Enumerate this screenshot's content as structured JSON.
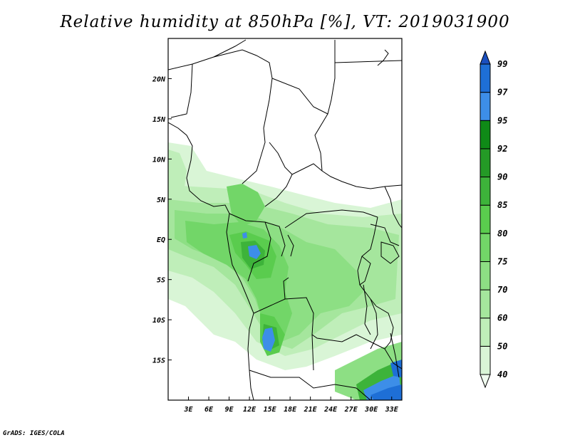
{
  "title": "Relative humidity at 850hPa [%], VT: 2019031900",
  "credit": "GrADS: IGES/COLA",
  "map": {
    "lon_range": [
      0,
      34.5
    ],
    "lat_range": [
      -20,
      25
    ],
    "lon_ticks": [
      {
        "value": 3,
        "label": "3E"
      },
      {
        "value": 6,
        "label": "6E"
      },
      {
        "value": 9,
        "label": "9E"
      },
      {
        "value": 12,
        "label": "12E"
      },
      {
        "value": 15,
        "label": "15E"
      },
      {
        "value": 18,
        "label": "18E"
      },
      {
        "value": 21,
        "label": "21E"
      },
      {
        "value": 24,
        "label": "24E"
      },
      {
        "value": 27,
        "label": "27E"
      },
      {
        "value": 30,
        "label": "30E"
      },
      {
        "value": 33,
        "label": "33E"
      }
    ],
    "lat_ticks": [
      {
        "value": 20,
        "label": "20N"
      },
      {
        "value": 15,
        "label": "15N"
      },
      {
        "value": 10,
        "label": "10N"
      },
      {
        "value": 5,
        "label": "5N"
      },
      {
        "value": 0,
        "label": "EQ"
      },
      {
        "value": -5,
        "label": "5S"
      },
      {
        "value": -10,
        "label": "10S"
      },
      {
        "value": -15,
        "label": "15S"
      }
    ]
  },
  "colorbar": {
    "levels": [
      "40",
      "50",
      "60",
      "70",
      "75",
      "80",
      "85",
      "90",
      "92",
      "95",
      "97",
      "99"
    ],
    "colors": [
      "#f0fbef",
      "#d9f5d6",
      "#bfeeb9",
      "#a5e69d",
      "#8ddf84",
      "#72d668",
      "#5acc4e",
      "#3db33a",
      "#249a26",
      "#0f8a17",
      "#3d8ee8",
      "#1e6fd6",
      "#1a4fbf"
    ]
  }
}
